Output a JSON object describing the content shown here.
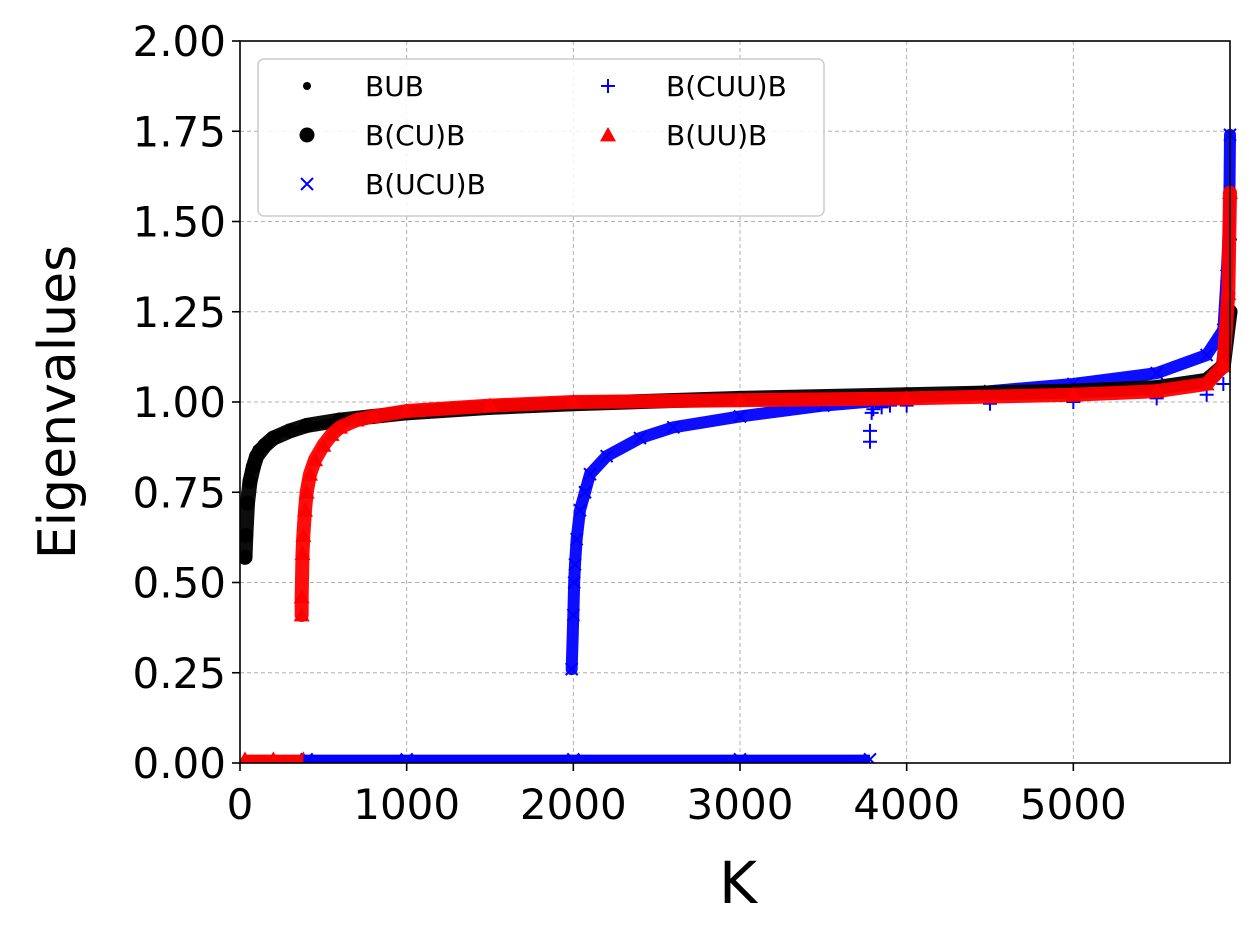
{
  "chart_data": {
    "type": "scatter",
    "title": "",
    "xlabel": "K",
    "ylabel": "Eigenvalues",
    "xlim": [
      0,
      5940
    ],
    "ylim": [
      0,
      2.0
    ],
    "xticks": [
      0,
      1000,
      2000,
      3000,
      4000,
      5000
    ],
    "xtick_labels": [
      "0",
      "1000",
      "2000",
      "3000",
      "4000",
      "5000"
    ],
    "yticks": [
      0,
      0.25,
      0.5,
      0.75,
      1.0,
      1.25,
      1.5,
      1.75,
      2.0
    ],
    "ytick_labels": [
      "0.00",
      "0.25",
      "0.50",
      "0.75",
      "1.00",
      "1.25",
      "1.50",
      "1.75",
      "2.00"
    ],
    "grid": true,
    "legend_position": "top-left",
    "series": [
      {
        "name": "BUB",
        "marker": "small-dot",
        "color": "#000000",
        "x": [
          30,
          40,
          60,
          80,
          100,
          150,
          200,
          300,
          400,
          500,
          700,
          1000,
          1500,
          2000,
          3000,
          4000,
          5000,
          5500,
          5800,
          5900,
          5940
        ],
        "y": [
          0.01,
          0.78,
          0.82,
          0.85,
          0.87,
          0.89,
          0.905,
          0.92,
          0.93,
          0.94,
          0.955,
          0.97,
          0.985,
          0.995,
          1.01,
          1.02,
          1.03,
          1.04,
          1.06,
          1.1,
          1.3
        ]
      },
      {
        "name": "B(CU)B",
        "marker": "large-dot",
        "color": "#000000",
        "x": [
          30,
          35,
          45,
          60,
          80,
          100,
          150,
          200,
          300,
          400,
          600,
          800,
          1000,
          1500,
          2000,
          3000,
          4000,
          5000,
          5500,
          5800,
          5900,
          5940
        ],
        "y": [
          0.57,
          0.63,
          0.72,
          0.78,
          0.82,
          0.85,
          0.88,
          0.9,
          0.92,
          0.935,
          0.95,
          0.96,
          0.97,
          0.985,
          0.995,
          1.01,
          1.02,
          1.03,
          1.04,
          1.06,
          1.1,
          1.25
        ]
      },
      {
        "name": "B(UCU)B",
        "marker": "x",
        "color": "#0000ff",
        "x": [
          400,
          1000,
          2000,
          3000,
          3780,
          1990,
          2000,
          2005,
          2010,
          2020,
          2040,
          2070,
          2100,
          2200,
          2400,
          2600,
          3000,
          3500,
          4000,
          4500,
          5000,
          5500,
          5800,
          5900,
          5920,
          5935,
          5940
        ],
        "y": [
          0.01,
          0.01,
          0.01,
          0.01,
          0.01,
          0.26,
          0.41,
          0.5,
          0.55,
          0.62,
          0.7,
          0.75,
          0.8,
          0.85,
          0.9,
          0.93,
          0.96,
          0.99,
          1.01,
          1.03,
          1.05,
          1.08,
          1.13,
          1.2,
          1.35,
          1.5,
          1.74
        ]
      },
      {
        "name": "B(CUU)B",
        "marker": "plus",
        "color": "#0000ff",
        "x": [
          3780,
          3780,
          3790,
          3800,
          3850,
          3900,
          4000,
          4500,
          5000,
          5500,
          5800,
          5900,
          5930,
          5940
        ],
        "y": [
          0.89,
          0.92,
          0.97,
          0.98,
          0.985,
          0.99,
          0.99,
          0.995,
          1.0,
          1.01,
          1.02,
          1.05,
          1.3,
          1.45
        ]
      },
      {
        "name": "B(UU)B",
        "marker": "triangle",
        "color": "#ff0000",
        "x": [
          30,
          200,
          380,
          370,
          370,
          375,
          380,
          390,
          400,
          420,
          450,
          500,
          550,
          600,
          700,
          800,
          1000,
          1500,
          2000,
          3000,
          4000,
          5000,
          5500,
          5800,
          5900,
          5930,
          5940
        ],
        "y": [
          0.01,
          0.01,
          0.01,
          0.41,
          0.46,
          0.58,
          0.63,
          0.7,
          0.75,
          0.8,
          0.84,
          0.88,
          0.91,
          0.93,
          0.95,
          0.96,
          0.975,
          0.99,
          1.0,
          1.005,
          1.01,
          1.02,
          1.03,
          1.05,
          1.1,
          1.3,
          1.58
        ]
      }
    ]
  }
}
